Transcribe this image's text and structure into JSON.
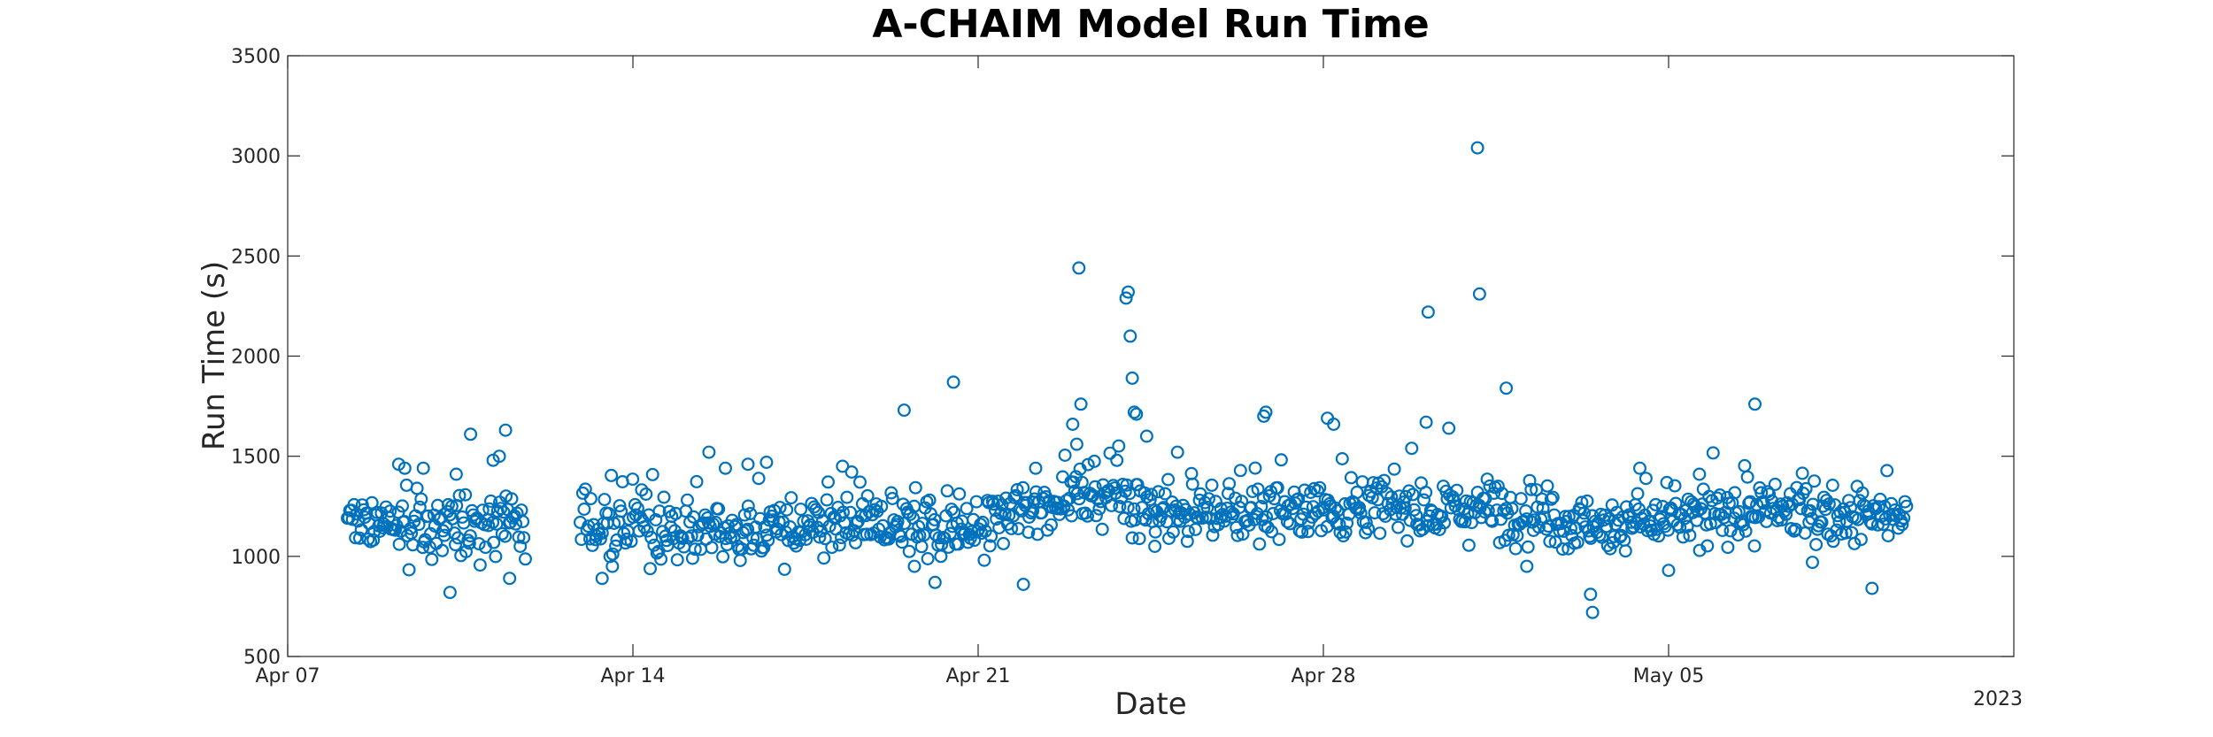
{
  "chart_data": {
    "type": "scatter",
    "title": "A-CHAIM Model Run Time",
    "xlabel": "Date",
    "ylabel": "Run Time (s)",
    "year_label": "2023",
    "x_range": [
      "2023-04-07",
      "2023-05-12"
    ],
    "xlim": [
      "2023-04-07",
      "2023-05-12"
    ],
    "ylim": [
      500,
      3500
    ],
    "x_ticks": [
      {
        "date": "2023-04-07",
        "label": "Apr 07"
      },
      {
        "date": "2023-04-14",
        "label": "Apr 14"
      },
      {
        "date": "2023-04-21",
        "label": "Apr 21"
      },
      {
        "date": "2023-04-28",
        "label": "Apr 28"
      },
      {
        "date": "2023-05-05",
        "label": "May 05"
      }
    ],
    "y_ticks": [
      500,
      1000,
      1500,
      2000,
      2500,
      3000,
      3500
    ],
    "grid": false,
    "marker": "circle",
    "color": "#0072BD",
    "series": [
      {
        "baseline": [
          [
            "2023-04-08",
            1140
          ],
          [
            "2023-04-09",
            1150
          ],
          [
            "2023-04-10",
            1140
          ],
          [
            "2023-04-11",
            1160
          ],
          [
            "2023-04-12",
            1150
          ],
          [
            "2023-04-13",
            1140
          ],
          [
            "2023-04-14",
            1150
          ],
          [
            "2023-04-15",
            1120
          ],
          [
            "2023-04-16",
            1120
          ],
          [
            "2023-04-17",
            1120
          ],
          [
            "2023-04-18",
            1130
          ],
          [
            "2023-04-19",
            1170
          ],
          [
            "2023-04-20",
            1140
          ],
          [
            "2023-04-21",
            1140
          ],
          [
            "2023-04-22",
            1240
          ],
          [
            "2023-04-23",
            1320
          ],
          [
            "2023-04-24",
            1300
          ],
          [
            "2023-04-25",
            1200
          ],
          [
            "2023-04-26",
            1220
          ],
          [
            "2023-04-27",
            1230
          ],
          [
            "2023-04-28",
            1250
          ],
          [
            "2023-04-29",
            1250
          ],
          [
            "2023-04-30",
            1230
          ],
          [
            "2023-05-01",
            1250
          ],
          [
            "2023-05-02",
            1220
          ],
          [
            "2023-05-03",
            1180
          ],
          [
            "2023-05-04",
            1150
          ],
          [
            "2023-05-05",
            1180
          ],
          [
            "2023-05-06",
            1200
          ],
          [
            "2023-05-07",
            1230
          ],
          [
            "2023-05-08",
            1200
          ],
          [
            "2023-05-09",
            1200
          ]
        ],
        "gaps": [
          [
            "2023-04-11T20:00",
            "2023-04-12T22:00"
          ]
        ],
        "outliers": [
          [
            "2023-04-09T06:00",
            1460
          ],
          [
            "2023-04-09T09:00",
            1440
          ],
          [
            "2023-04-09T18:00",
            1440
          ],
          [
            "2023-04-10T07:00",
            820
          ],
          [
            "2023-04-10T10:00",
            1410
          ],
          [
            "2023-04-10T17:00",
            1610
          ],
          [
            "2023-04-11T04:00",
            1480
          ],
          [
            "2023-04-11T07:00",
            1500
          ],
          [
            "2023-04-11T10:00",
            1630
          ],
          [
            "2023-04-11T12:00",
            890
          ],
          [
            "2023-04-13T09:00",
            890
          ],
          [
            "2023-04-13T14:00",
            950
          ],
          [
            "2023-04-15T13:00",
            1520
          ],
          [
            "2023-04-15T21:00",
            1440
          ],
          [
            "2023-04-16T08:00",
            1460
          ],
          [
            "2023-04-16T17:00",
            1470
          ],
          [
            "2023-04-18T06:00",
            1450
          ],
          [
            "2023-04-19T12:00",
            1730
          ],
          [
            "2023-04-19T17:00",
            950
          ],
          [
            "2023-04-20T03:00",
            870
          ],
          [
            "2023-04-20T12:00",
            1870
          ],
          [
            "2023-04-21T22:00",
            860
          ],
          [
            "2023-04-22T04:00",
            1440
          ],
          [
            "2023-04-22T22:00",
            1660
          ],
          [
            "2023-04-23T01:00",
            2440
          ],
          [
            "2023-04-23T02:00",
            1760
          ],
          [
            "2023-04-23T00:00",
            1560
          ],
          [
            "2023-04-24T00:00",
            2290
          ],
          [
            "2023-04-24T01:00",
            2320
          ],
          [
            "2023-04-24T02:00",
            2100
          ],
          [
            "2023-04-24T03:00",
            1890
          ],
          [
            "2023-04-24T04:00",
            1720
          ],
          [
            "2023-04-24T05:00",
            1710
          ],
          [
            "2023-04-24T10:00",
            1600
          ],
          [
            "2023-04-24T14:00",
            1050
          ],
          [
            "2023-04-25T01:00",
            1520
          ],
          [
            "2023-04-26T19:00",
            1700
          ],
          [
            "2023-04-26T20:00",
            1720
          ],
          [
            "2023-04-28T02:00",
            1690
          ],
          [
            "2023-04-28T05:00",
            1660
          ],
          [
            "2023-04-30T02:00",
            1670
          ],
          [
            "2023-04-30T03:00",
            2220
          ],
          [
            "2023-05-01T03:00",
            3040
          ],
          [
            "2023-05-01T04:00",
            2310
          ],
          [
            "2023-05-01T17:00",
            1840
          ],
          [
            "2023-05-02T03:00",
            950
          ],
          [
            "2023-05-03T11:00",
            720
          ],
          [
            "2023-05-03T10:00",
            810
          ],
          [
            "2023-05-04T10:00",
            1440
          ],
          [
            "2023-05-05T00:00",
            930
          ],
          [
            "2023-05-05T15:00",
            1410
          ],
          [
            "2023-05-06T18:00",
            1760
          ],
          [
            "2023-05-07T22:00",
            970
          ],
          [
            "2023-05-09T03:00",
            840
          ]
        ]
      }
    ]
  }
}
